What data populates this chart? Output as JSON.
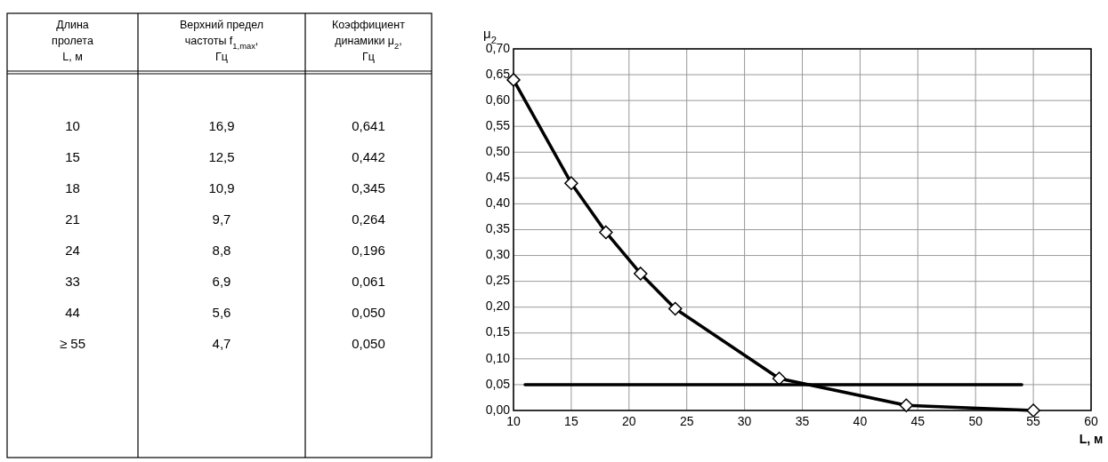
{
  "chart_data": [
    {
      "type": "other",
      "categories": [
        "Длина\nпролета\nL, м",
        "Верхний предел\nчастоты f$_{1,max}$,\nГц",
        "Коэффициент\nдинамики μ$_{2}$,\nГц"
      ],
      "annotations": [
        "10",
        "16,9",
        "0,641",
        "15",
        "12,5",
        "0,442",
        "18",
        "10,9",
        "0,345",
        "21",
        "9,7",
        "0,264",
        "24",
        "8,8",
        "0,196",
        "33",
        "6,9",
        "0,061",
        "44",
        "5,6",
        "0,050",
        "≥ 55",
        "4,7",
        "0,050"
      ]
    },
    {
      "type": "line",
      "ylabel": "μ$_{2}$",
      "xlabel": "L, м",
      "xlim": [
        10,
        60
      ],
      "xticks": [
        10,
        15,
        20,
        25,
        30,
        35,
        40,
        45,
        50,
        55,
        60
      ],
      "ylim": [
        0,
        0.7
      ],
      "yticks": [
        {
          "value": 0,
          "label": "0,00"
        },
        {
          "value": 0.05,
          "label": "0,05"
        },
        {
          "value": 0.1,
          "label": "0,10"
        },
        {
          "value": 0.15,
          "label": "0,15"
        },
        {
          "value": 0.2,
          "label": "0,20"
        },
        {
          "value": 0.25,
          "label": "0,25"
        },
        {
          "value": 0.3,
          "label": "0,30"
        },
        {
          "value": 0.35,
          "label": "0,35"
        },
        {
          "value": 0.4,
          "label": "0,40"
        },
        {
          "value": 0.45,
          "label": "0,45"
        },
        {
          "value": 0.5,
          "label": "0,50"
        },
        {
          "value": 0.55,
          "label": "0,55"
        },
        {
          "value": 0.6,
          "label": "0,60"
        },
        {
          "value": 0.65,
          "label": "0,65"
        },
        {
          "value": 0.7,
          "label": "0,70"
        }
      ],
      "grid": true,
      "series": [
        {
          "color": "#000000",
          "marker": "diamond",
          "x": [
            10,
            15,
            18,
            21,
            24,
            33,
            44,
            55
          ],
          "values": [
            0.64,
            0.44,
            0.345,
            0.265,
            0.197,
            0.062,
            0.01,
            0.0
          ]
        },
        {
          "color": "#000000",
          "marker": "none",
          "x": [
            11,
            54
          ],
          "values": [
            0.05,
            0.05
          ]
        }
      ]
    }
  ]
}
